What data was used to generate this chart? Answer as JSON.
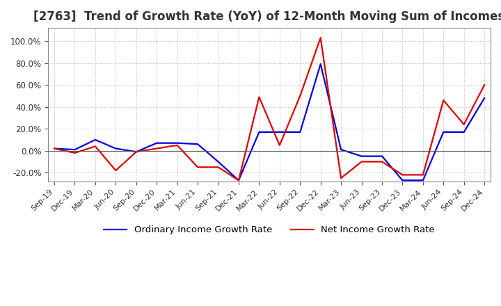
{
  "title": "[2763]  Trend of Growth Rate (YoY) of 12-Month Moving Sum of Incomes",
  "title_fontsize": 12,
  "ylim": [
    -28,
    112
  ],
  "yticks": [
    -20.0,
    0.0,
    20.0,
    40.0,
    60.0,
    80.0,
    100.0
  ],
  "background_color": "#ffffff",
  "grid_color": "#aaaaaa",
  "legend_labels": [
    "Ordinary Income Growth Rate",
    "Net Income Growth Rate"
  ],
  "legend_colors": [
    "#0000dd",
    "#dd0000"
  ],
  "x_labels": [
    "Sep-19",
    "Dec-19",
    "Mar-20",
    "Jun-20",
    "Sep-20",
    "Dec-20",
    "Mar-21",
    "Jun-21",
    "Sep-21",
    "Dec-21",
    "Mar-22",
    "Jun-22",
    "Sep-22",
    "Dec-22",
    "Mar-23",
    "Jun-23",
    "Sep-23",
    "Dec-23",
    "Mar-24",
    "Jun-24",
    "Sep-24",
    "Dec-24"
  ],
  "ordinary_income_growth": [
    2.0,
    1.0,
    10.0,
    2.0,
    -1.0,
    7.0,
    7.0,
    6.0,
    -10.0,
    -27.0,
    17.0,
    17.0,
    17.0,
    79.0,
    1.0,
    -5.0,
    -5.0,
    -27.0,
    -27.0,
    17.0,
    17.0,
    48.0
  ],
  "net_income_growth": [
    2.0,
    -2.0,
    4.0,
    -18.0,
    -1.0,
    2.0,
    5.0,
    -15.0,
    -15.0,
    -27.0,
    49.0,
    5.0,
    50.0,
    103.0,
    -25.0,
    -10.0,
    -10.0,
    -22.0,
    -22.0,
    46.0,
    24.0,
    60.0
  ]
}
